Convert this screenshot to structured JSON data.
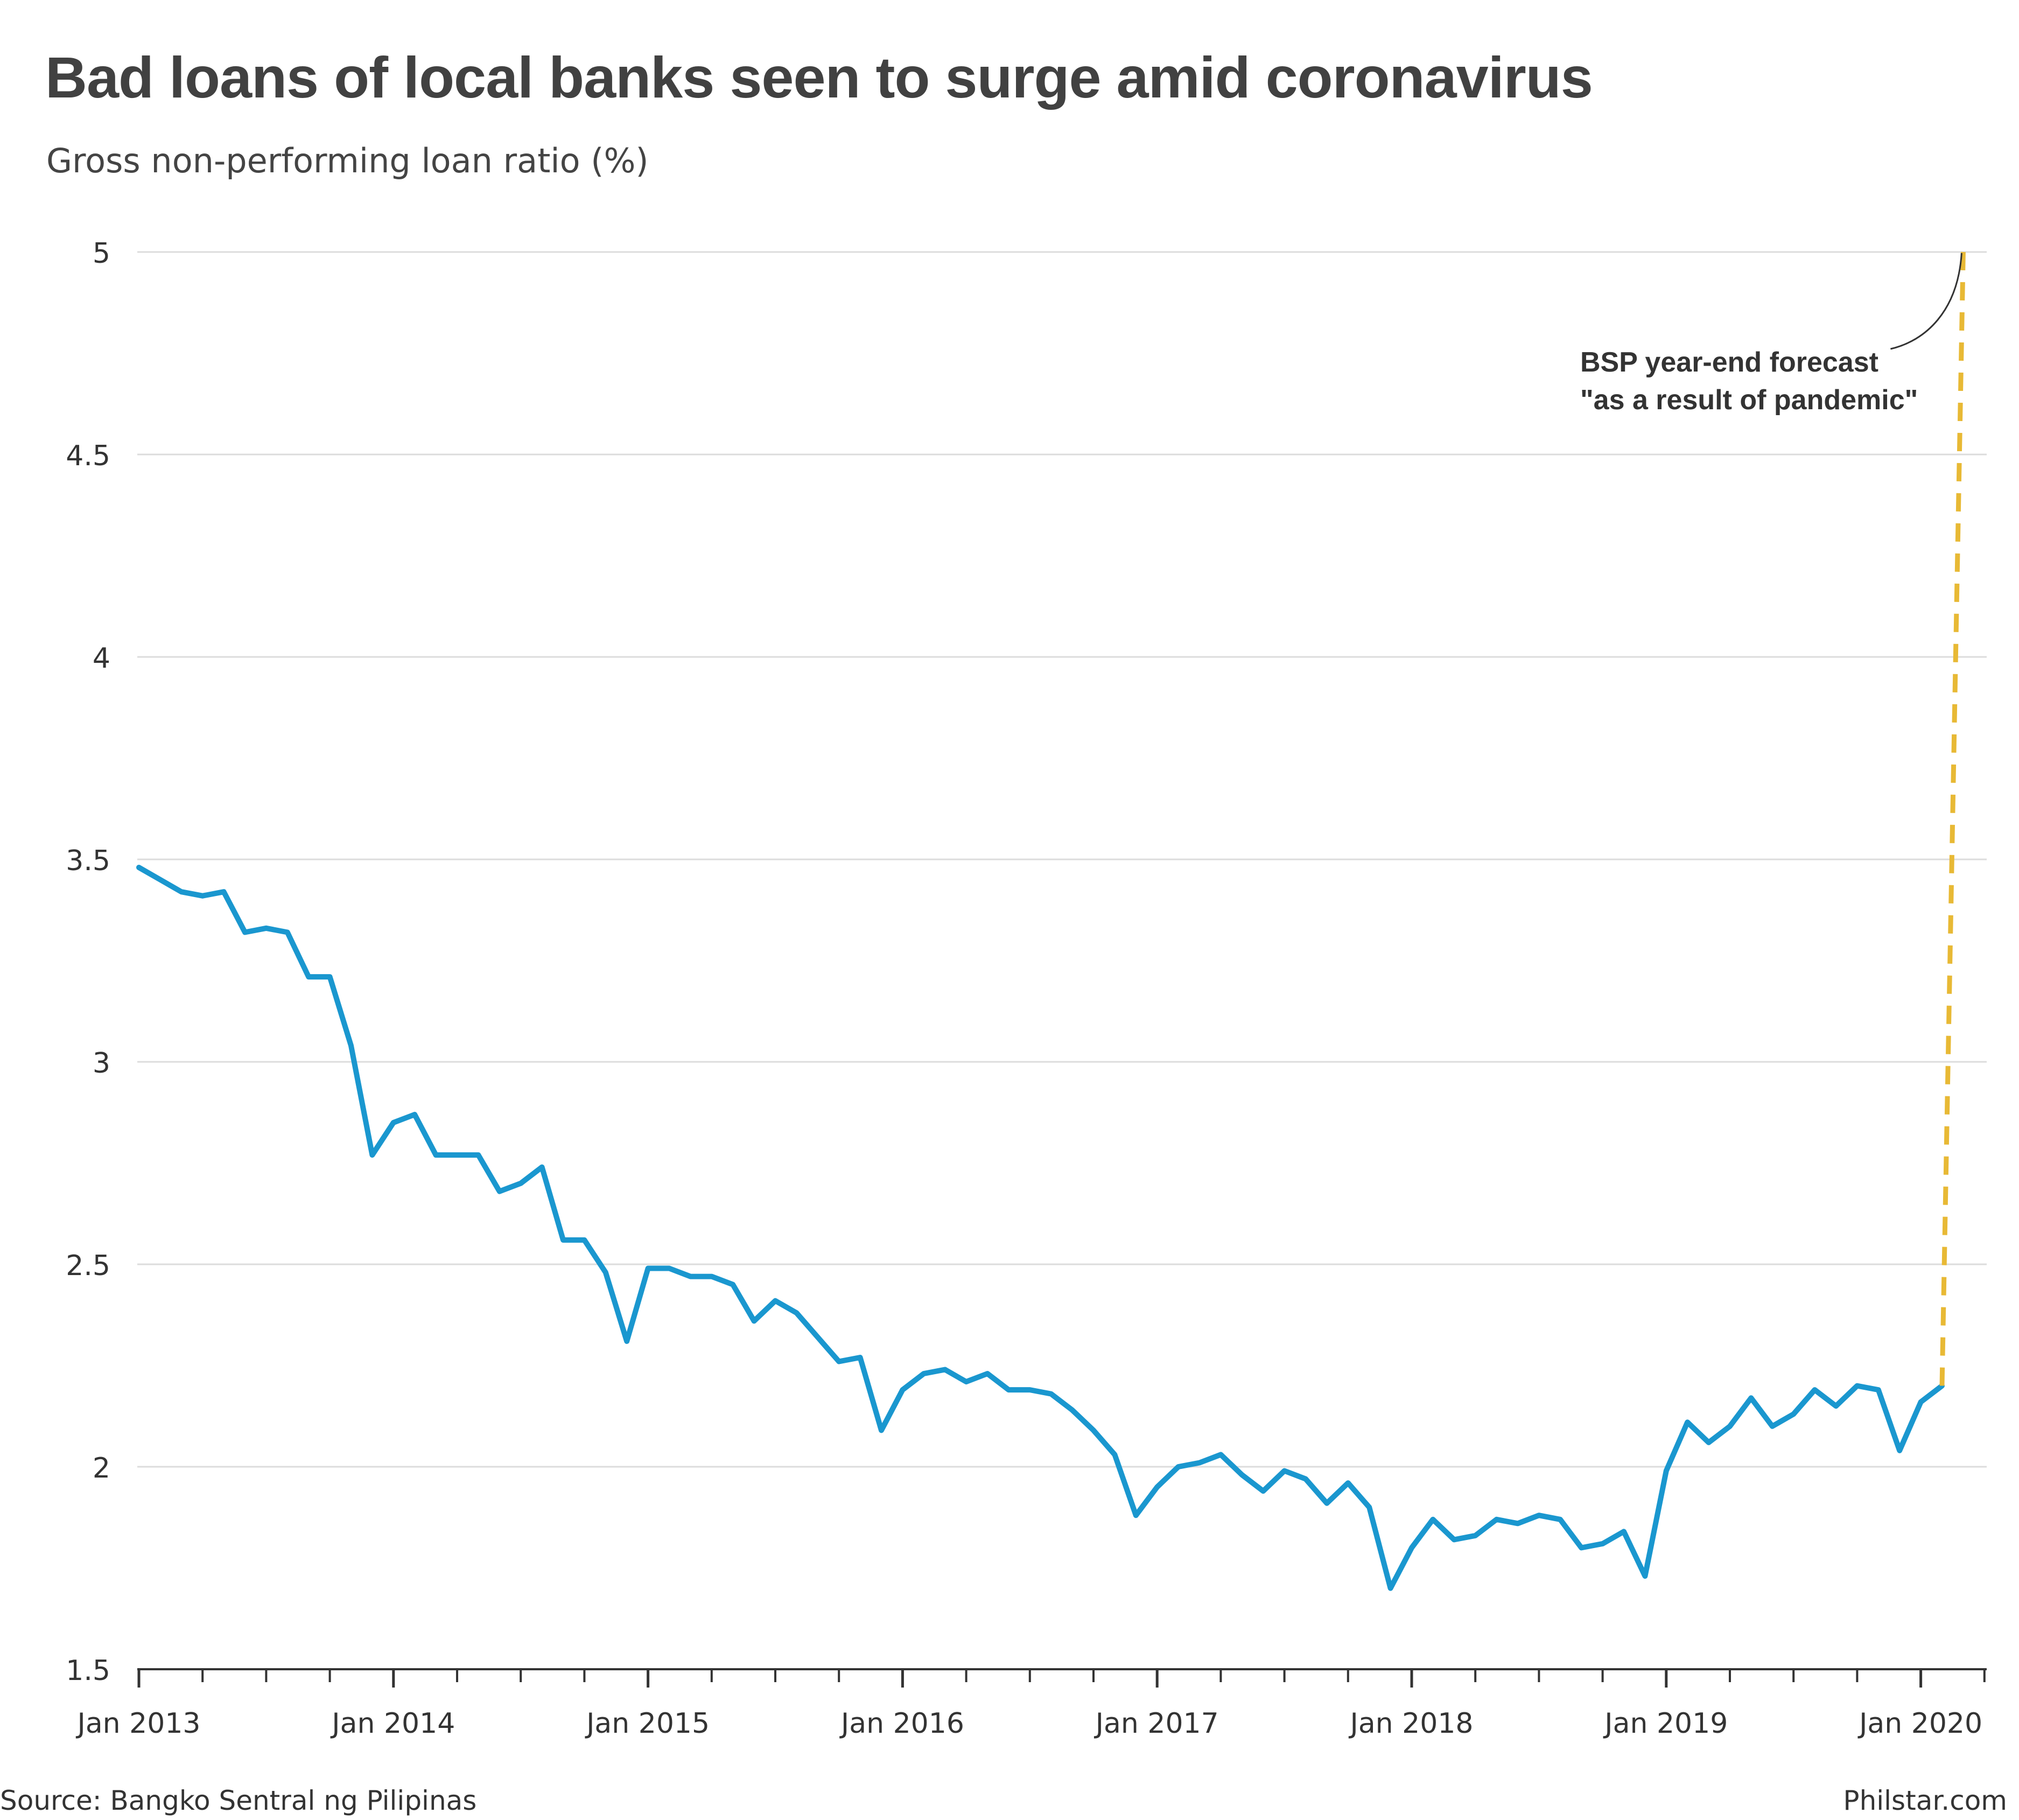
{
  "title": "Bad loans of local banks seen to surge amid coronavirus",
  "subtitle": "Gross non-performing loan ratio (%)",
  "source": "Source: Bangko Sentral ng Pilipinas",
  "credit": "Philstar.com",
  "annotation": {
    "line1": "BSP year-end forecast",
    "line2": "\"as a result of pandemic\""
  },
  "colors": {
    "series": "#1a97cf",
    "forecast": "#e8b935",
    "grid": "#dcdcdc",
    "axis": "#333333"
  },
  "chart_data": {
    "type": "line",
    "title": "Bad loans of local banks seen to surge amid coronavirus",
    "ylabel": "Gross non-performing loan ratio (%)",
    "xlabel": "",
    "ylim": [
      1.5,
      5
    ],
    "yticks": [
      1.5,
      2,
      2.5,
      3,
      3.5,
      4,
      4.5,
      5
    ],
    "ytick_labels": [
      "1.5",
      "2",
      "2.5",
      "3",
      "3.5",
      "4",
      "4.5",
      "5"
    ],
    "xlim": [
      "2013-01",
      "2020-04"
    ],
    "xticks": [
      "Jan 2013",
      "Jan 2014",
      "Jan 2015",
      "Jan 2016",
      "Jan 2017",
      "Jan 2018",
      "Jan 2019",
      "Jan 2020"
    ],
    "grid": true,
    "series": [
      {
        "x": [
          "2013-01",
          "2013-02",
          "2013-03",
          "2013-04",
          "2013-05",
          "2013-06",
          "2013-07",
          "2013-08",
          "2013-09",
          "2013-10",
          "2013-11",
          "2013-12",
          "2014-01",
          "2014-02",
          "2014-03",
          "2014-04",
          "2014-05",
          "2014-06",
          "2014-07",
          "2014-08",
          "2014-09",
          "2014-10",
          "2014-11",
          "2014-12",
          "2015-01",
          "2015-02",
          "2015-03",
          "2015-04",
          "2015-05",
          "2015-06",
          "2015-07",
          "2015-08",
          "2015-09",
          "2015-10",
          "2015-11",
          "2015-12",
          "2016-01",
          "2016-02",
          "2016-03",
          "2016-04",
          "2016-05",
          "2016-06",
          "2016-07",
          "2016-08",
          "2016-09",
          "2016-10",
          "2016-11",
          "2016-12",
          "2017-01",
          "2017-02",
          "2017-03",
          "2017-04",
          "2017-05",
          "2017-06",
          "2017-07",
          "2017-08",
          "2017-09",
          "2017-10",
          "2017-11",
          "2017-12",
          "2018-01",
          "2018-02",
          "2018-03",
          "2018-04",
          "2018-05",
          "2018-06",
          "2018-07",
          "2018-08",
          "2018-09",
          "2018-10",
          "2018-11",
          "2018-12",
          "2019-01",
          "2019-02",
          "2019-03",
          "2019-04",
          "2019-05",
          "2019-06",
          "2019-07",
          "2019-08",
          "2019-09",
          "2019-10",
          "2019-11",
          "2019-12",
          "2020-01",
          "2020-02"
        ],
        "values": [
          3.48,
          3.45,
          3.42,
          3.41,
          3.42,
          3.32,
          3.33,
          3.32,
          3.21,
          3.21,
          3.04,
          2.77,
          2.85,
          2.87,
          2.77,
          2.77,
          2.77,
          2.68,
          2.7,
          2.74,
          2.56,
          2.56,
          2.48,
          2.31,
          2.49,
          2.49,
          2.47,
          2.47,
          2.45,
          2.36,
          2.41,
          2.38,
          2.32,
          2.26,
          2.27,
          2.09,
          2.19,
          2.23,
          2.24,
          2.21,
          2.23,
          2.19,
          2.19,
          2.18,
          2.14,
          2.09,
          2.03,
          1.88,
          1.95,
          2.0,
          2.01,
          2.03,
          1.98,
          1.94,
          1.99,
          1.97,
          1.91,
          1.96,
          1.9,
          1.7,
          1.8,
          1.87,
          1.82,
          1.83,
          1.87,
          1.86,
          1.88,
          1.87,
          1.8,
          1.81,
          1.84,
          1.73,
          1.99,
          2.11,
          2.06,
          2.1,
          2.17,
          2.1,
          2.13,
          2.19,
          2.15,
          2.2,
          2.19,
          2.04,
          2.16,
          2.2
        ]
      },
      {
        "style": "dashed",
        "x": [
          "2020-02",
          "2020-03"
        ],
        "values": [
          2.2,
          5.0
        ]
      }
    ],
    "annotations": [
      "BSP year-end forecast \"as a result of pandemic\""
    ]
  }
}
